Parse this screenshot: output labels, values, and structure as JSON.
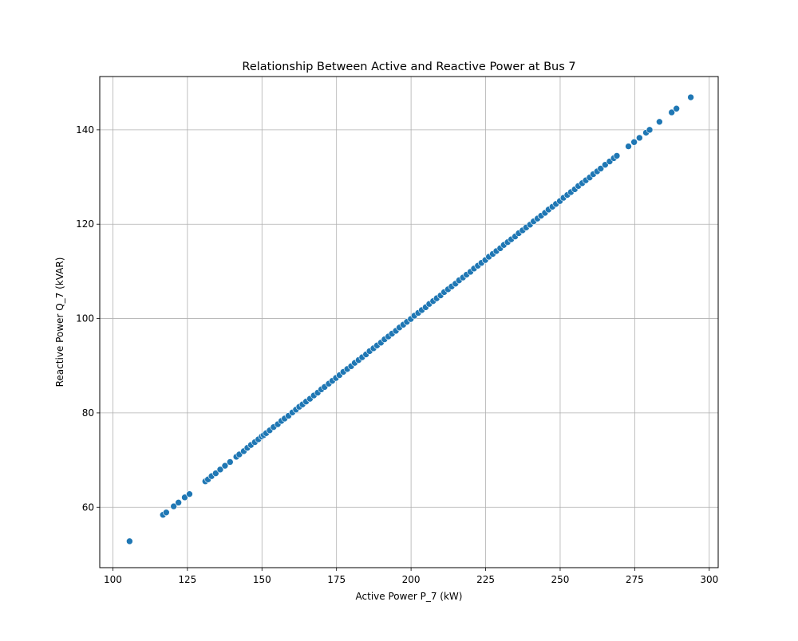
{
  "chart_data": {
    "type": "scatter",
    "title": "Relationship Between Active and Reactive Power at Bus 7",
    "xlabel": "Active Power P_7 (kW)",
    "ylabel": "Reactive Power Q_7 (kVAR)",
    "xlim": [
      95.6,
      303.0
    ],
    "ylim": [
      47.2,
      151.3
    ],
    "xticks": [
      100,
      125,
      150,
      175,
      200,
      225,
      250,
      275,
      300
    ],
    "yticks": [
      60,
      80,
      100,
      120,
      140
    ],
    "grid": true,
    "marker_color": "#1f77b4",
    "marker_edge": "#ffffff",
    "series": [
      {
        "x": [
          105.6,
          116.8,
          117.9,
          120.4,
          122.0,
          124.1,
          125.7,
          131.0,
          131.9,
          133.1,
          134.5,
          136.0,
          137.6,
          139.3,
          141.4,
          142.4,
          143.9,
          145.1,
          146.3,
          147.6,
          148.8,
          149.9,
          150.6,
          151.4,
          152.6,
          153.9,
          155.3,
          156.5,
          157.6,
          158.9,
          160.2,
          161.4,
          162.5,
          163.6,
          164.8,
          166.1,
          167.4,
          168.7,
          169.9,
          171.0,
          172.4,
          173.6,
          174.8,
          176.0,
          177.3,
          178.6,
          179.9,
          181.1,
          182.4,
          183.6,
          184.9,
          186.1,
          187.4,
          188.6,
          189.9,
          191.1,
          192.4,
          193.6,
          194.9,
          196.1,
          197.4,
          198.6,
          199.9,
          201.1,
          202.4,
          203.6,
          204.9,
          206.1,
          207.4,
          208.6,
          209.9,
          211.1,
          212.4,
          213.6,
          214.9,
          216.1,
          217.4,
          218.6,
          219.9,
          221.1,
          222.4,
          223.6,
          224.9,
          226.1,
          227.4,
          228.6,
          229.9,
          231.1,
          232.4,
          233.6,
          234.9,
          236.1,
          237.4,
          238.6,
          239.9,
          241.1,
          242.4,
          243.6,
          244.9,
          246.1,
          247.4,
          248.6,
          249.9,
          251.1,
          252.4,
          253.6,
          254.9,
          256.1,
          257.4,
          258.6,
          259.9,
          261.1,
          262.4,
          263.6,
          265.1,
          266.6,
          268.0,
          269.0,
          272.9,
          274.8,
          276.6,
          278.8,
          280.0,
          283.3,
          287.4,
          289.0,
          293.8
        ],
        "y": [
          52.8,
          58.4,
          58.9,
          60.2,
          61.0,
          62.1,
          62.8,
          65.5,
          65.9,
          66.6,
          67.2,
          68.0,
          68.8,
          69.6,
          70.7,
          71.2,
          71.9,
          72.6,
          73.2,
          73.8,
          74.4,
          75.0,
          75.3,
          75.7,
          76.3,
          77.0,
          77.6,
          78.3,
          78.8,
          79.4,
          80.1,
          80.7,
          81.3,
          81.8,
          82.4,
          83.0,
          83.7,
          84.3,
          85.0,
          85.5,
          86.2,
          86.8,
          87.4,
          88.0,
          88.7,
          89.3,
          89.9,
          90.6,
          91.2,
          91.8,
          92.4,
          93.1,
          93.7,
          94.3,
          94.9,
          95.6,
          96.2,
          96.8,
          97.4,
          98.1,
          98.7,
          99.3,
          99.9,
          100.6,
          101.2,
          101.8,
          102.4,
          103.1,
          103.7,
          104.3,
          104.9,
          105.6,
          106.2,
          106.8,
          107.4,
          108.1,
          108.7,
          109.3,
          109.9,
          110.6,
          111.2,
          111.8,
          112.4,
          113.1,
          113.7,
          114.3,
          114.9,
          115.6,
          116.2,
          116.8,
          117.4,
          118.1,
          118.7,
          119.3,
          119.9,
          120.6,
          121.2,
          121.8,
          122.4,
          123.1,
          123.7,
          124.3,
          124.9,
          125.6,
          126.2,
          126.8,
          127.4,
          128.1,
          128.7,
          129.3,
          129.9,
          130.6,
          131.2,
          131.8,
          132.6,
          133.3,
          134.0,
          134.5,
          136.5,
          137.4,
          138.3,
          139.4,
          140.0,
          141.7,
          143.7,
          144.5,
          146.9
        ]
      }
    ]
  }
}
